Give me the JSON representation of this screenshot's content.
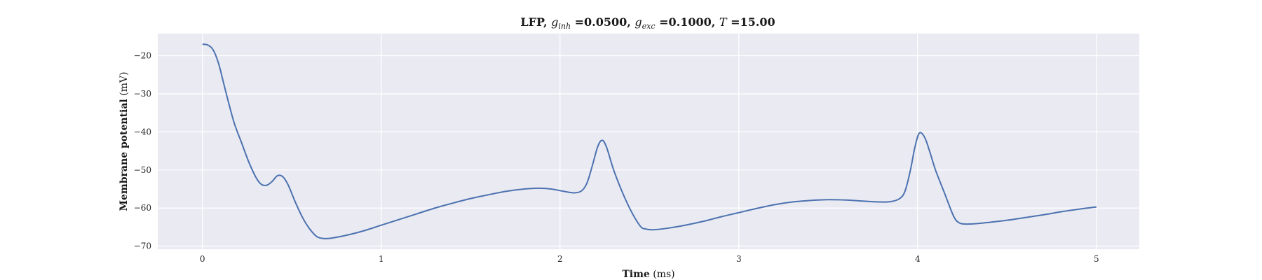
{
  "chart_data": {
    "type": "line",
    "title": "LFP, g_inh =0.0500, g_exc =0.1000, T =15.00",
    "title_parts": {
      "prefix": "LFP, ",
      "g_symbol": "g",
      "inh_subscript": "inh",
      "inh_value": " =0.0500, ",
      "exc_subscript": "exc",
      "exc_value": " =0.1000, ",
      "t_symbol": "T",
      "t_value": " =15.00"
    },
    "xlabel": "Time",
    "xlabel_unit": " (ms)",
    "ylabel": "Membrane potential",
    "ylabel_unit": " (mV)",
    "xlim": [
      -0.25,
      5.24
    ],
    "ylim": [
      -70.8,
      -14.2
    ],
    "xticks": [
      0,
      1,
      2,
      3,
      4,
      5
    ],
    "yticks": [
      -70,
      -60,
      -50,
      -40,
      -30,
      -20
    ],
    "xtick_labels": [
      "0",
      "1",
      "2",
      "3",
      "4",
      "5"
    ],
    "ytick_labels": [
      "−70",
      "−60",
      "−50",
      "−40",
      "−30",
      "−20"
    ],
    "grid": true,
    "legend": "none",
    "colors": {
      "line": "#4c72b0",
      "background": "#eaeaf2",
      "grid": "#ffffff"
    },
    "series": [
      {
        "x": [
          0.0,
          0.03,
          0.06,
          0.09,
          0.12,
          0.15,
          0.18,
          0.22,
          0.26,
          0.3,
          0.33,
          0.36,
          0.39,
          0.42,
          0.45,
          0.48,
          0.52,
          0.56,
          0.6,
          0.64,
          0.68,
          0.72,
          0.8,
          0.9,
          1.0,
          1.1,
          1.2,
          1.3,
          1.4,
          1.5,
          1.6,
          1.7,
          1.8,
          1.88,
          1.95,
          2.02,
          2.08,
          2.12,
          2.15,
          2.18,
          2.21,
          2.235,
          2.26,
          2.3,
          2.35,
          2.4,
          2.45,
          2.48,
          2.52,
          2.6,
          2.7,
          2.8,
          2.9,
          3.0,
          3.1,
          3.2,
          3.3,
          3.4,
          3.5,
          3.6,
          3.7,
          3.78,
          3.85,
          3.9,
          3.93,
          3.96,
          3.985,
          4.01,
          4.04,
          4.07,
          4.1,
          4.15,
          4.2,
          4.23,
          4.27,
          4.35,
          4.5,
          4.6,
          4.7,
          4.8,
          4.9,
          5.0
        ],
        "y": [
          -17.0,
          -17.2,
          -18.5,
          -22.0,
          -27.5,
          -33.0,
          -38.0,
          -43.0,
          -48.0,
          -52.0,
          -53.8,
          -54.0,
          -53.0,
          -51.5,
          -51.8,
          -54.0,
          -58.5,
          -62.5,
          -65.5,
          -67.5,
          -68.0,
          -67.9,
          -67.2,
          -66.0,
          -64.5,
          -63.0,
          -61.5,
          -60.0,
          -58.7,
          -57.5,
          -56.5,
          -55.6,
          -55.0,
          -54.8,
          -55.0,
          -55.6,
          -56.0,
          -55.5,
          -53.5,
          -49.0,
          -44.0,
          -42.2,
          -44.0,
          -50.0,
          -56.0,
          -61.0,
          -64.8,
          -65.5,
          -65.7,
          -65.3,
          -64.5,
          -63.5,
          -62.3,
          -61.2,
          -60.1,
          -59.1,
          -58.4,
          -58.0,
          -57.8,
          -57.9,
          -58.2,
          -58.4,
          -58.3,
          -57.5,
          -55.5,
          -50.0,
          -44.0,
          -40.3,
          -41.5,
          -45.5,
          -50.0,
          -56.0,
          -62.0,
          -63.8,
          -64.2,
          -64.0,
          -63.2,
          -62.5,
          -61.8,
          -61.0,
          -60.3,
          -59.7
        ]
      }
    ]
  }
}
